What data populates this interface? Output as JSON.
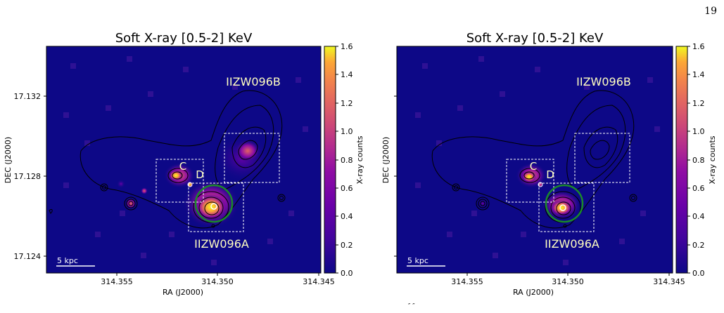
{
  "page_number": "19",
  "caption_fragment": "″  ″",
  "panels": [
    {
      "title": "Soft X-ray [0.5-2] KeV",
      "xlabel": "RA (J2000)",
      "ylabel": "DEC (J2000)",
      "x_ticks": [
        "314.355",
        "314.350",
        "314.345"
      ],
      "y_ticks": [
        "17.132",
        "17.128",
        "17.124"
      ],
      "colorbar_label": "X-ray counts",
      "colorbar_ticks": [
        "0.0",
        "0.2",
        "0.4",
        "0.6",
        "0.8",
        "1.0",
        "1.2",
        "1.4",
        "1.6"
      ],
      "labels": {
        "b": "IIZW096B",
        "a": "IIZW096A",
        "c": "C",
        "d": "D"
      },
      "scalebar": "5 kpc"
    },
    {
      "title": "Soft X-ray [0.5-2] KeV",
      "xlabel": "RA (J2000)",
      "ylabel": "DEC (J2000)",
      "x_ticks": [
        "314.355",
        "314.350",
        "314.345"
      ],
      "y_ticks": [
        "17.132",
        "17.128",
        "17.124"
      ],
      "colorbar_label": "X-ray counts",
      "colorbar_ticks": [
        "0.0",
        "0.2",
        "0.4",
        "0.6",
        "0.8",
        "1.0",
        "1.2",
        "1.4",
        "1.6"
      ],
      "labels": {
        "b": "IIZW096B",
        "a": "IIZW096A",
        "c": "C",
        "d": "D"
      },
      "scalebar": "5 kpc"
    }
  ],
  "chart_data": [
    {
      "type": "heatmap",
      "title": "Soft X-ray [0.5-2] KeV",
      "xlabel": "RA (J2000)",
      "ylabel": "DEC (J2000)",
      "xlim": [
        314.3582,
        314.3448
      ],
      "ylim": [
        17.1234,
        17.1347
      ],
      "colorbar_label": "X-ray counts",
      "colorbar_range": [
        0.0,
        1.6
      ],
      "colormap": "plasma"
    },
    {
      "type": "heatmap",
      "title": "Soft X-ray [0.5-2] KeV",
      "xlabel": "RA (J2000)",
      "ylabel": "DEC (J2000)",
      "xlim": [
        314.3582,
        314.3448
      ],
      "ylim": [
        17.1234,
        17.1347
      ],
      "colorbar_label": "X-ray counts",
      "colorbar_range": [
        0.0,
        1.6
      ],
      "colormap": "plasma"
    }
  ],
  "colors": {
    "background": "#0d0887",
    "circle": "#1a8a2a",
    "label_text": "#ffffc0"
  }
}
